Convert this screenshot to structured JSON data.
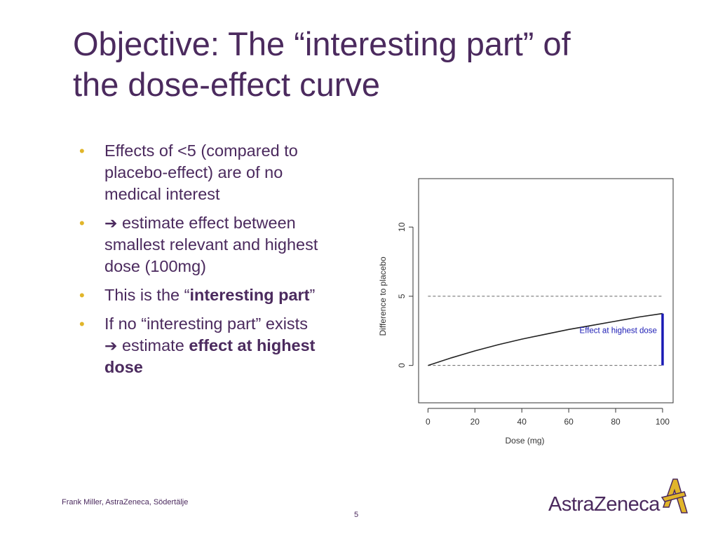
{
  "slide": {
    "title_line1": "Objective: The “interesting part” of",
    "title_line2": "the dose-effect curve",
    "bullets": [
      {
        "lines": [
          "Effects of <5 (compared to",
          "placebo-effect) are of no",
          "medical interest"
        ]
      },
      {
        "arrow": "➔",
        "line1_text": " estimate effect between",
        "line2": "smallest relevant and highest",
        "line3": "dose (100mg)"
      },
      {
        "prefix": "This is the “",
        "bold": "interesting part",
        "suffix": "”"
      },
      {
        "line1": "If no “interesting part” exists",
        "arrow": "➔",
        "line2_text": " estimate ",
        "line2_bold": "effect at highest",
        "line3_bold": "dose"
      }
    ],
    "footer": "Frank Miller, AstraZeneca, Södertälje",
    "page_number": "5",
    "logo_text": "AstraZeneca"
  },
  "colors": {
    "title": "#4b2a5e",
    "bullet": "#e1b52a",
    "curve": "#222222",
    "highlight": "#1a1ab4",
    "logo_mark": "#e1b52a"
  },
  "chart_data": {
    "type": "line",
    "xlabel": "Dose (mg)",
    "ylabel": "Difference to placebo",
    "x_ticks": [
      "0",
      "20",
      "40",
      "60",
      "80",
      "100"
    ],
    "y_ticks": [
      "0",
      "5",
      "10"
    ],
    "xlim": [
      -4,
      104.5
    ],
    "ylim": [
      -2.7,
      13.5
    ],
    "series": [
      {
        "x": [
          0,
          10,
          20,
          30,
          40,
          50,
          60,
          70,
          80,
          90,
          100
        ],
        "values": [
          0,
          0.55,
          1.05,
          1.5,
          1.9,
          2.25,
          2.6,
          2.9,
          3.2,
          3.5,
          3.75
        ]
      }
    ],
    "reference_lines": [
      0,
      5
    ],
    "highlight": {
      "x": 100,
      "y0": 0,
      "y1": 3.75,
      "label": "Effect at highest dose"
    }
  }
}
